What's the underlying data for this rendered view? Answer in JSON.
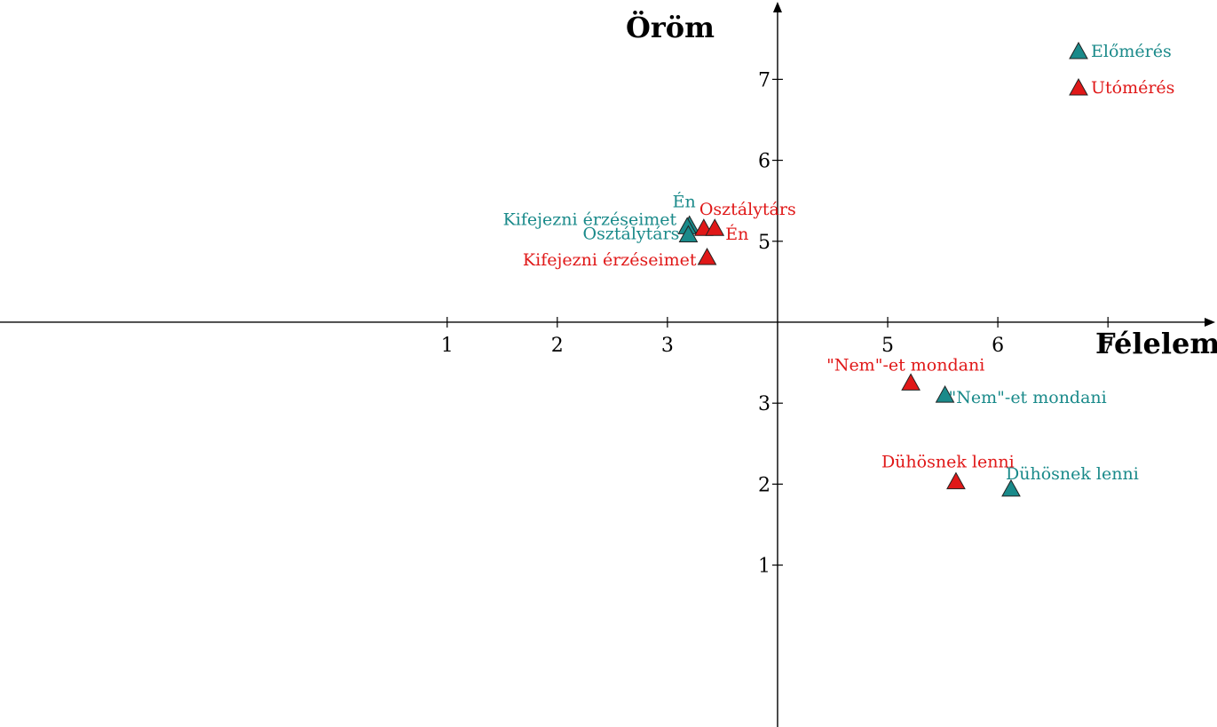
{
  "chart_data": {
    "type": "scatter",
    "xlabel": "Félelem",
    "ylabel": "Öröm",
    "x_ticks": [
      1,
      2,
      3,
      5,
      6,
      7
    ],
    "y_ticks": [
      1,
      2,
      3,
      5,
      6,
      7
    ],
    "xlim": [
      -3.06,
      7.99
    ],
    "ylim": [
      -1.0,
      7.98
    ],
    "origin": [
      4,
      4
    ],
    "grid": false,
    "legend_position": "top-right",
    "series": [
      {
        "name": "Előmérés",
        "color": "#1a8a8a",
        "marker": "triangle",
        "points": [
          {
            "label": "Én",
            "x": 3.2,
            "y": 5.2
          },
          {
            "label": "Kifejezni érzéseimet",
            "x": 3.18,
            "y": 5.18
          },
          {
            "label": "Osztálytárs",
            "x": 3.19,
            "y": 5.08
          },
          {
            "label": "\"Nem\"-et mondani",
            "x": 5.52,
            "y": 3.1
          },
          {
            "label": "Dühösnek lenni",
            "x": 6.12,
            "y": 1.94
          }
        ]
      },
      {
        "name": "Utómérés",
        "color": "#e01818",
        "marker": "triangle",
        "points": [
          {
            "label": "Osztálytárs",
            "x": 3.33,
            "y": 5.16
          },
          {
            "label": "Én",
            "x": 3.43,
            "y": 5.16
          },
          {
            "label": "Kifejezni érzéseimet",
            "x": 3.36,
            "y": 4.8
          },
          {
            "label": "\"Nem\"-et mondani",
            "x": 5.21,
            "y": 3.25
          },
          {
            "label": "Dühösnek lenni",
            "x": 5.62,
            "y": 2.03
          }
        ]
      }
    ]
  }
}
